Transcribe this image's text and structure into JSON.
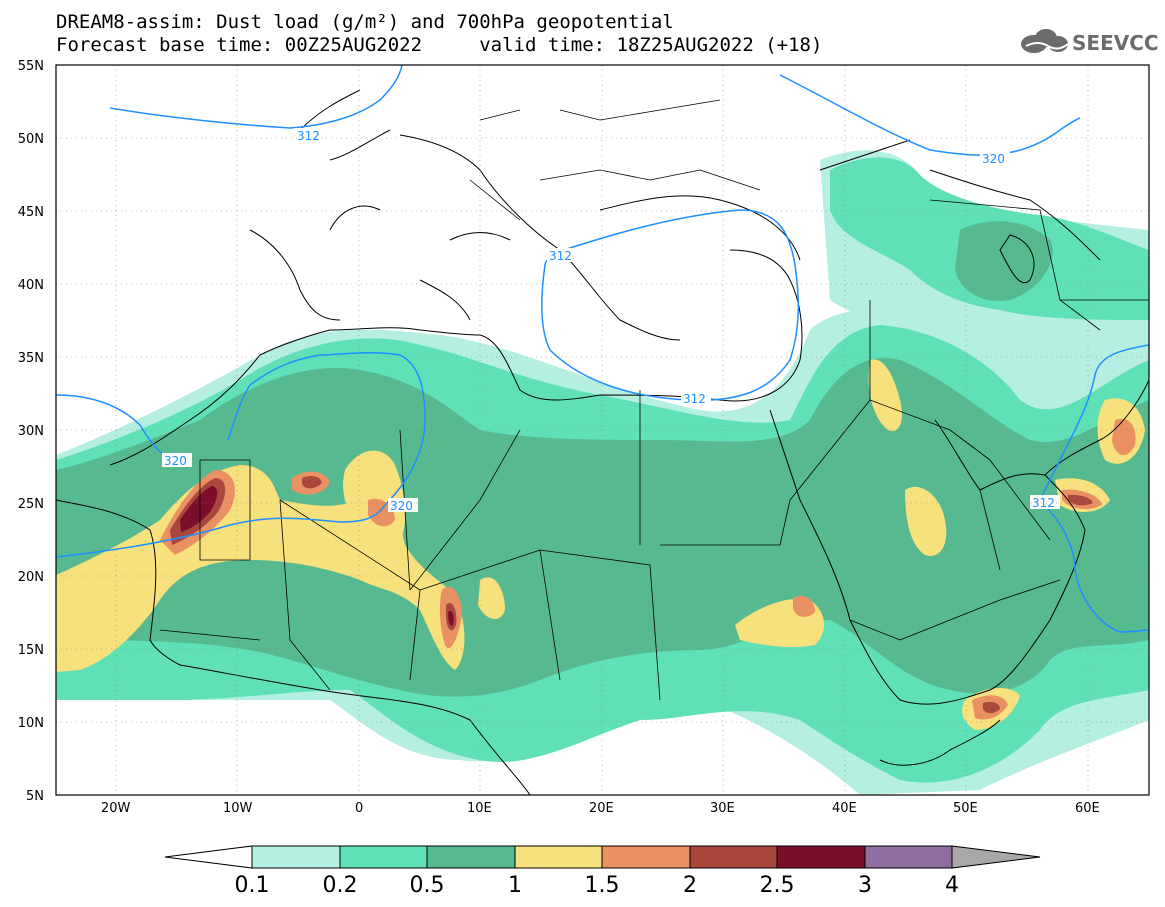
{
  "header": {
    "title_line1": "DREAM8-assim: Dust load (g/m²) and 700hPa geopotential",
    "title_line2": "Forecast base time: 00Z25AUG2022     valid time: 18Z25AUG2022 (+18)",
    "logo_text": "SEEVCCC"
  },
  "map": {
    "lon_range": [
      -25,
      65
    ],
    "lat_range": [
      5,
      55
    ],
    "lon_ticks": [
      "20W",
      "10W",
      "0",
      "10E",
      "20E",
      "30E",
      "40E",
      "50E",
      "60E"
    ],
    "lat_ticks": [
      "55N",
      "50N",
      "45N",
      "40N",
      "35N",
      "30N",
      "25N",
      "20N",
      "15N",
      "10N",
      "5N"
    ],
    "contour_labels": [
      "312",
      "312",
      "312",
      "312",
      "320",
      "320",
      "320"
    ]
  },
  "colorbar": {
    "labels": [
      "0.1",
      "0.2",
      "0.5",
      "1",
      "1.5",
      "2",
      "2.5",
      "3",
      "4"
    ],
    "colors": [
      "#b4efe1",
      "#5fe0b7",
      "#56b98f",
      "#f6e17c",
      "#ea9163",
      "#a9473c",
      "#7d0e2b",
      "#8e6da0",
      "#a8a8a8"
    ]
  }
}
